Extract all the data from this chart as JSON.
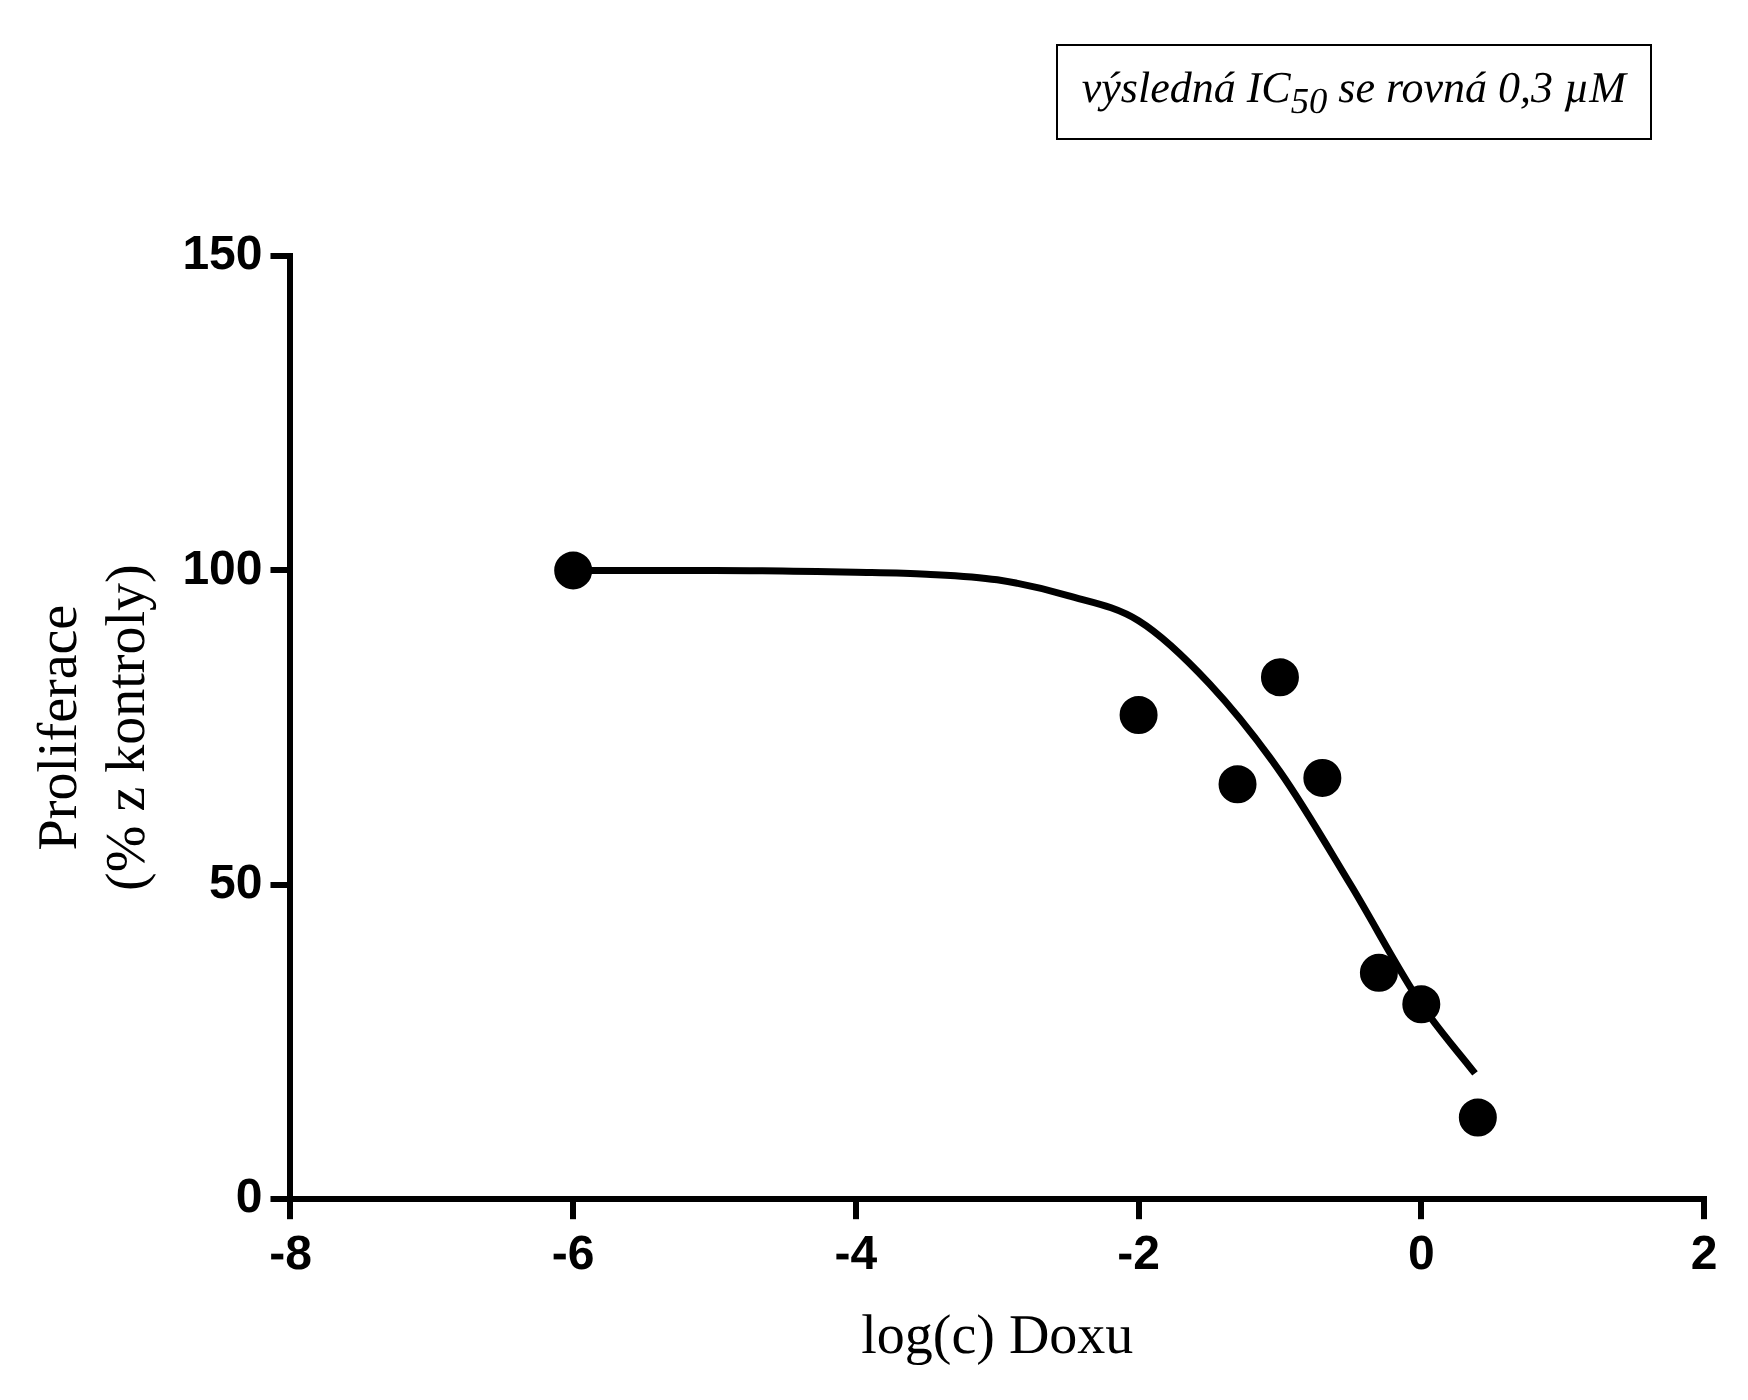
{
  "chart_data": {
    "type": "scatter",
    "xlabel": "log(c) Doxu",
    "ylabel": "Proliferace\n(% z kontroly)",
    "annotations": [
      "výsledná IC$_{50}$ se rovná 0,3 µM"
    ],
    "series": [
      {
        "color": "#000000",
        "marker": "circle",
        "x": [
          -6,
          -2,
          -1.3,
          -1,
          -0.7,
          -0.3,
          0,
          0.4
        ],
        "values": [
          100,
          77,
          66,
          83,
          67,
          36,
          31,
          13
        ]
      },
      {
        "type": "line",
        "color": "#000000",
        "marker": "none",
        "line_style": "solid",
        "x": [
          -6,
          -5,
          -4,
          -3.5,
          -3,
          -2.5,
          -2,
          -1.5,
          -1,
          -0.5,
          0,
          0.38
        ],
        "values": [
          100,
          100,
          99.7,
          99.4,
          98.5,
          96,
          92,
          82,
          68,
          50,
          31,
          20
        ]
      }
    ],
    "xlim": [
      -8,
      2
    ],
    "xticks": [
      -8,
      -6,
      -4,
      -2,
      0,
      2
    ],
    "ylim": [
      0,
      150
    ],
    "yticks": [
      0,
      50,
      100,
      150
    ],
    "grid": false,
    "legend": false
  }
}
